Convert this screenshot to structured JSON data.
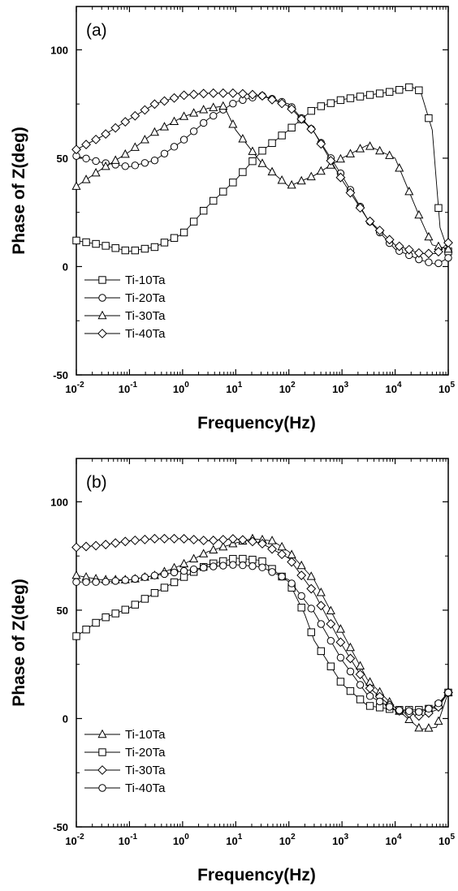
{
  "chart_data": [
    {
      "type": "line",
      "panel_label": "(a)",
      "xlabel": "Frequency(Hz)",
      "ylabel": "Phase of Z(deg)",
      "x_scale": "log",
      "xlim": [
        0.01,
        100000
      ],
      "ylim": [
        -50,
        120
      ],
      "x_ticks": [
        0.01,
        0.1,
        1,
        10,
        100,
        1000,
        10000,
        100000
      ],
      "x_tick_labels": [
        {
          "base": "10",
          "exp": "-2"
        },
        {
          "base": "10",
          "exp": "-1"
        },
        {
          "base": "10",
          "exp": "0"
        },
        {
          "base": "10",
          "exp": "1"
        },
        {
          "base": "10",
          "exp": "2"
        },
        {
          "base": "10",
          "exp": "3"
        },
        {
          "base": "10",
          "exp": "4"
        },
        {
          "base": "10",
          "exp": "5"
        }
      ],
      "y_ticks": [
        -50,
        0,
        50,
        100
      ],
      "y_tick_labels": [
        "-50",
        "0",
        "50",
        "100"
      ],
      "legend_position": "bottom-left",
      "series": [
        {
          "name": "Ti-10Ta",
          "marker": "square",
          "points": [
            [
              0.01,
              12
            ],
            [
              0.03,
              10
            ],
            [
              0.1,
              7
            ],
            [
              0.3,
              9
            ],
            [
              1,
              15
            ],
            [
              3,
              28
            ],
            [
              10,
              40
            ],
            [
              30,
              53
            ],
            [
              100,
              63
            ],
            [
              300,
              73
            ],
            [
              1000,
              77
            ],
            [
              3000,
              79
            ],
            [
              10000,
              81
            ],
            [
              20000,
              83
            ],
            [
              30000,
              81
            ],
            [
              50000,
              63
            ],
            [
              70000,
              18
            ],
            [
              100000,
              7
            ]
          ]
        },
        {
          "name": "Ti-20Ta",
          "marker": "circle",
          "points": [
            [
              0.01,
              51
            ],
            [
              0.03,
              48
            ],
            [
              0.1,
              46
            ],
            [
              0.3,
              49
            ],
            [
              1,
              58
            ],
            [
              3,
              68
            ],
            [
              10,
              76
            ],
            [
              30,
              79
            ],
            [
              100,
              75
            ],
            [
              300,
              62
            ],
            [
              1000,
              42
            ],
            [
              3000,
              22
            ],
            [
              10000,
              8
            ],
            [
              30000,
              3
            ],
            [
              60000,
              1
            ],
            [
              100000,
              4
            ]
          ]
        },
        {
          "name": "Ti-30Ta",
          "marker": "triangle",
          "points": [
            [
              0.01,
              37
            ],
            [
              0.03,
              45
            ],
            [
              0.1,
              53
            ],
            [
              0.3,
              62
            ],
            [
              1,
              69
            ],
            [
              3,
              73
            ],
            [
              6,
              74
            ],
            [
              10,
              63
            ],
            [
              30,
              48
            ],
            [
              100,
              37
            ],
            [
              300,
              42
            ],
            [
              1000,
              50
            ],
            [
              3000,
              56
            ],
            [
              10000,
              50
            ],
            [
              30000,
              22
            ],
            [
              50000,
              10
            ],
            [
              100000,
              8
            ]
          ]
        },
        {
          "name": "Ti-40Ta",
          "marker": "diamond",
          "points": [
            [
              0.01,
              54
            ],
            [
              0.03,
              60
            ],
            [
              0.1,
              68
            ],
            [
              0.3,
              75
            ],
            [
              1,
              79
            ],
            [
              3,
              80
            ],
            [
              10,
              80
            ],
            [
              30,
              79
            ],
            [
              100,
              74
            ],
            [
              300,
              62
            ],
            [
              1000,
              40
            ],
            [
              3000,
              22
            ],
            [
              10000,
              10
            ],
            [
              30000,
              6
            ],
            [
              60000,
              6
            ],
            [
              100000,
              11
            ]
          ]
        }
      ]
    },
    {
      "type": "line",
      "panel_label": "(b)",
      "xlabel": "Frequency(Hz)",
      "ylabel": "Phase of Z(deg)",
      "x_scale": "log",
      "xlim": [
        0.01,
        100000
      ],
      "ylim": [
        -50,
        120
      ],
      "x_ticks": [
        0.01,
        0.1,
        1,
        10,
        100,
        1000,
        10000,
        100000
      ],
      "x_tick_labels": [
        {
          "base": "10",
          "exp": "-2"
        },
        {
          "base": "10",
          "exp": "-1"
        },
        {
          "base": "10",
          "exp": "0"
        },
        {
          "base": "10",
          "exp": "1"
        },
        {
          "base": "10",
          "exp": "2"
        },
        {
          "base": "10",
          "exp": "3"
        },
        {
          "base": "10",
          "exp": "4"
        },
        {
          "base": "10",
          "exp": "5"
        }
      ],
      "y_ticks": [
        -50,
        0,
        50,
        100
      ],
      "y_tick_labels": [
        "-50",
        "0",
        "50",
        "100"
      ],
      "legend_position": "bottom-left",
      "series": [
        {
          "name": "Ti-10Ta",
          "marker": "triangle",
          "points": [
            [
              0.01,
              66
            ],
            [
              0.03,
              64
            ],
            [
              0.1,
              64
            ],
            [
              0.3,
              66
            ],
            [
              1,
              71
            ],
            [
              3,
              77
            ],
            [
              10,
              81
            ],
            [
              20,
              83
            ],
            [
              50,
              82
            ],
            [
              100,
              77
            ],
            [
              300,
              64
            ],
            [
              1000,
              40
            ],
            [
              3000,
              18
            ],
            [
              10000,
              5
            ],
            [
              30000,
              -5
            ],
            [
              60000,
              -4
            ],
            [
              100000,
              12
            ]
          ]
        },
        {
          "name": "Ti-20Ta",
          "marker": "square",
          "points": [
            [
              0.01,
              38
            ],
            [
              0.03,
              46
            ],
            [
              0.1,
              51
            ],
            [
              0.3,
              58
            ],
            [
              1,
              65
            ],
            [
              3,
              71
            ],
            [
              10,
              74
            ],
            [
              30,
              73
            ],
            [
              100,
              63
            ],
            [
              200,
              48
            ],
            [
              300,
              36
            ],
            [
              1000,
              16
            ],
            [
              3000,
              6
            ],
            [
              10000,
              4
            ],
            [
              30000,
              4
            ],
            [
              60000,
              5
            ],
            [
              100000,
              12
            ]
          ]
        },
        {
          "name": "Ti-30Ta",
          "marker": "diamond",
          "points": [
            [
              0.01,
              79
            ],
            [
              0.03,
              80
            ],
            [
              0.1,
              82
            ],
            [
              0.3,
              83
            ],
            [
              1,
              83
            ],
            [
              3,
              82
            ],
            [
              10,
              83
            ],
            [
              30,
              81
            ],
            [
              100,
              74
            ],
            [
              300,
              58
            ],
            [
              1000,
              34
            ],
            [
              3000,
              15
            ],
            [
              10000,
              4
            ],
            [
              30000,
              1
            ],
            [
              60000,
              4
            ],
            [
              100000,
              12
            ]
          ]
        },
        {
          "name": "Ti-40Ta",
          "marker": "circle",
          "points": [
            [
              0.01,
              63
            ],
            [
              0.03,
              63
            ],
            [
              0.1,
              64
            ],
            [
              0.3,
              66
            ],
            [
              1,
              68
            ],
            [
              3,
              70
            ],
            [
              10,
              71
            ],
            [
              30,
              70
            ],
            [
              100,
              64
            ],
            [
              300,
              49
            ],
            [
              1000,
              27
            ],
            [
              3000,
              11
            ],
            [
              10000,
              4
            ],
            [
              30000,
              3
            ],
            [
              60000,
              6
            ],
            [
              100000,
              12
            ]
          ]
        }
      ]
    }
  ]
}
